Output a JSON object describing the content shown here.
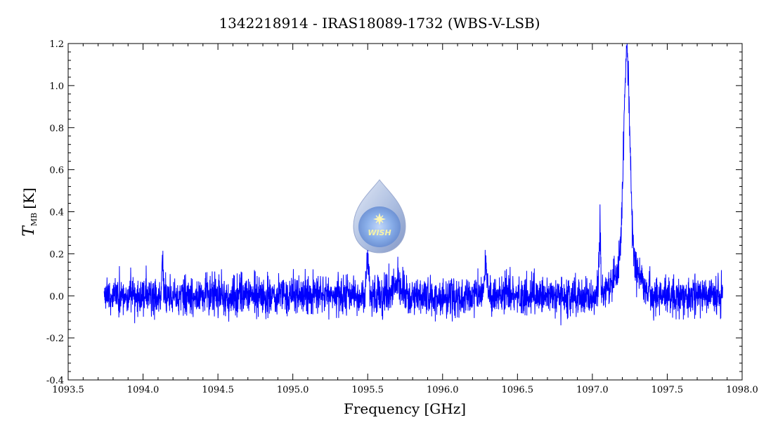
{
  "chart_data": {
    "type": "line",
    "title": "1342218914 - IRAS18089-1732 (WBS-V-LSB)",
    "xlabel": "Frequency [GHz]",
    "ylabel": {
      "main": "T",
      "sub": "MB",
      "unit": "[K]"
    },
    "xlim": [
      1093.5,
      1098.0
    ],
    "ylim": [
      -0.4,
      1.2
    ],
    "x_ticks": [
      1093.5,
      1094.0,
      1094.5,
      1095.0,
      1095.5,
      1096.0,
      1096.5,
      1097.0,
      1097.5,
      1098.0
    ],
    "x_tick_labels": [
      "1093.5",
      "1094.0",
      "1094.5",
      "1095.0",
      "1095.5",
      "1096.0",
      "1096.5",
      "1097.0",
      "1097.5",
      "1098.0"
    ],
    "y_ticks": [
      -0.4,
      -0.2,
      0.0,
      0.2,
      0.4,
      0.6,
      0.8,
      1.0,
      1.2
    ],
    "y_tick_labels": [
      "-0.4",
      "-0.2",
      "0.0",
      "0.2",
      "0.4",
      "0.6",
      "0.8",
      "1.0",
      "1.2"
    ],
    "grid": false,
    "series": [
      {
        "color": "#0000ff",
        "x_range": [
          1093.74,
          1097.87
        ],
        "noise_sigma": 0.045,
        "features": [
          {
            "center": 1094.13,
            "width": 0.005,
            "amplitude": 0.17
          },
          {
            "center": 1095.5,
            "width": 0.008,
            "amplitude": 0.2
          },
          {
            "center": 1095.7,
            "width": 0.03,
            "amplitude": 0.06
          },
          {
            "center": 1096.29,
            "width": 0.008,
            "amplitude": 0.14
          },
          {
            "center": 1097.05,
            "width": 0.006,
            "amplitude": 0.3
          },
          {
            "center": 1097.23,
            "width": 0.02,
            "amplitude": 1.0
          },
          {
            "center": 1097.23,
            "width": 0.07,
            "amplitude": 0.18
          }
        ]
      }
    ]
  },
  "watermark": {
    "logo_text": "WISH"
  }
}
